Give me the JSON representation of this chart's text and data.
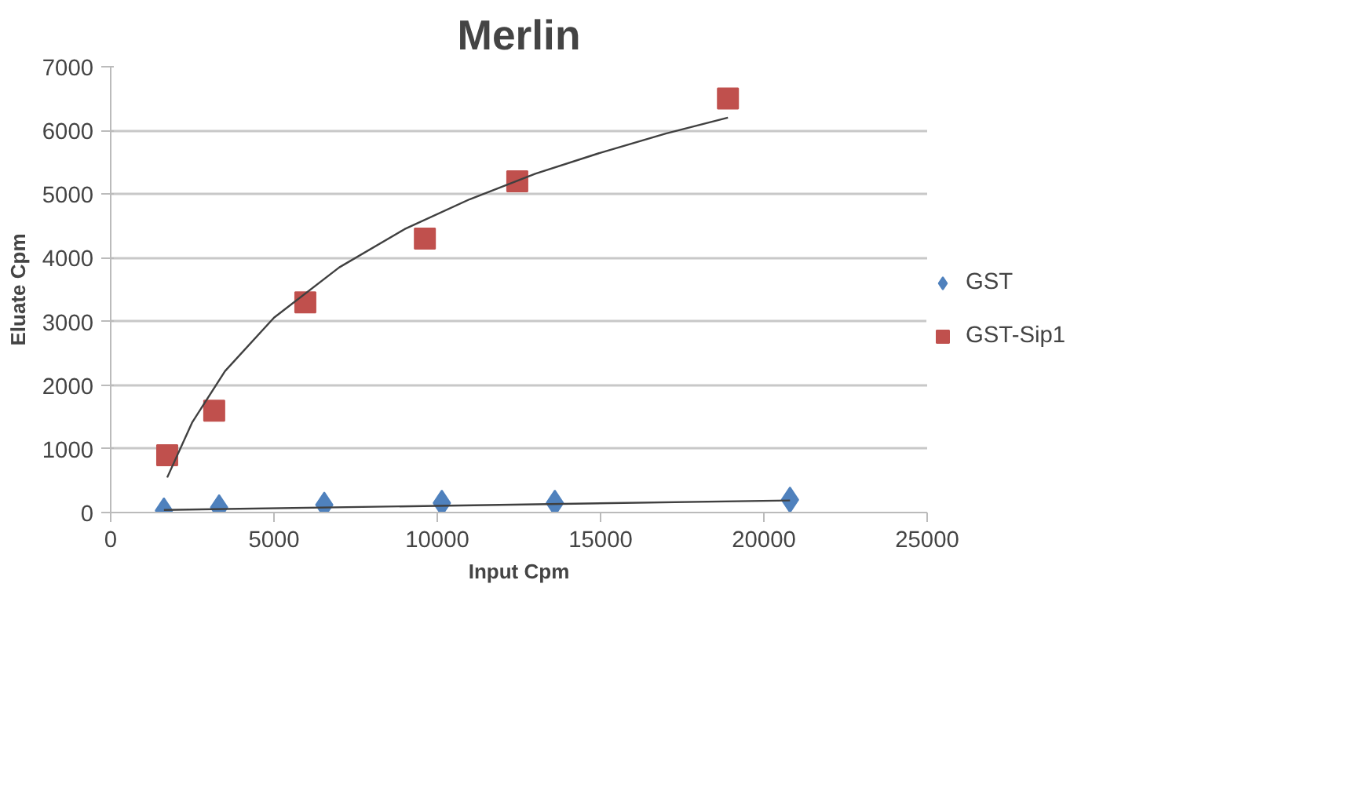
{
  "chart_data": {
    "type": "scatter",
    "title": "Merlin",
    "xlabel": "Input Cpm",
    "ylabel": "Eluate Cpm",
    "xlim": [
      0,
      25000
    ],
    "xticks": [
      0,
      5000,
      10000,
      15000,
      20000,
      25000
    ],
    "ylim": [
      0,
      7000
    ],
    "yticks": [
      0,
      1000,
      2000,
      3000,
      4000,
      5000,
      6000,
      7000
    ],
    "grid": "y",
    "legend": "right",
    "series": [
      {
        "name": "GST",
        "color": "#4f81bd",
        "marker": "diamond",
        "x": [
          1630,
          3320,
          6540,
          10140,
          13600,
          20800
        ],
        "values": [
          30,
          80,
          120,
          150,
          150,
          200
        ]
      },
      {
        "name": "GST-Sip1",
        "color": "#c0504d",
        "marker": "square",
        "x": [
          1730,
          3170,
          5960,
          9620,
          12450,
          18900
        ],
        "values": [
          900,
          1600,
          3300,
          4300,
          5200,
          6500
        ]
      },
      {
        "type": "line",
        "color": "#404040",
        "x": [
          1730,
          2500,
          3500,
          5000,
          7000,
          9000,
          11000,
          13000,
          15000,
          17000,
          18900
        ],
        "values": [
          550,
          1420,
          2220,
          3060,
          3850,
          4450,
          4920,
          5320,
          5650,
          5950,
          6200
        ]
      },
      {
        "type": "line",
        "color": "#404040",
        "x": [
          1630,
          20800
        ],
        "values": [
          40,
          190
        ]
      }
    ]
  }
}
